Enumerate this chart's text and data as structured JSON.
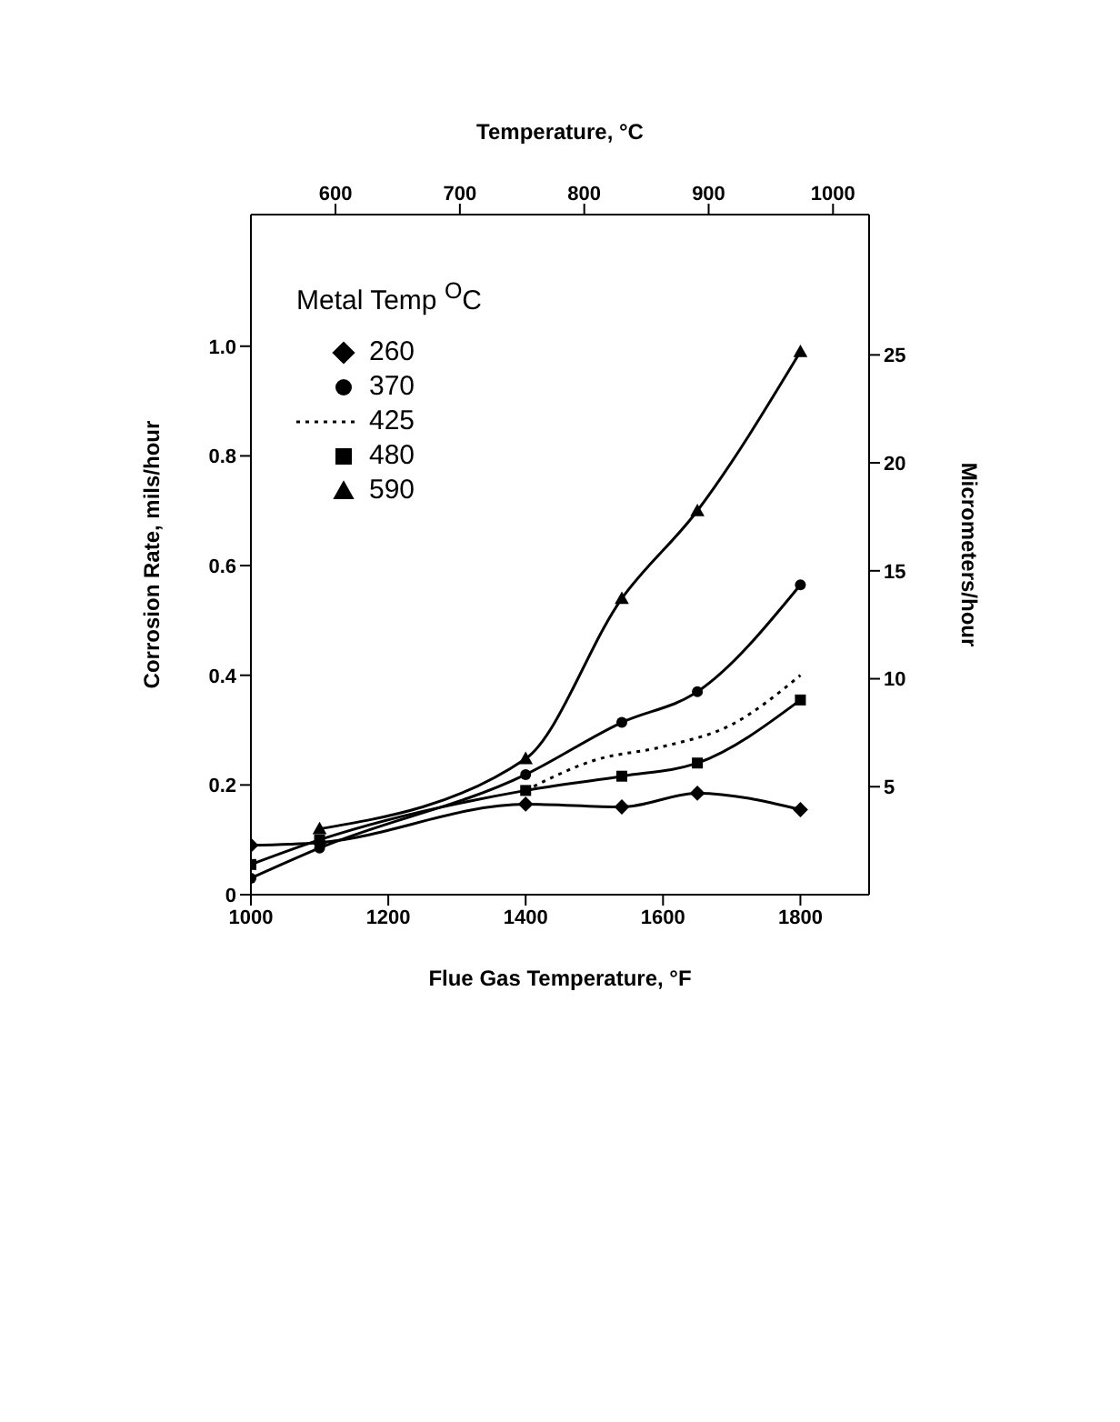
{
  "chart_data": {
    "type": "line",
    "xlabel": "Flue Gas Temperature, °F",
    "ylabel": "Corrosion Rate, mils/hour",
    "y2label": "Micrometers/hour",
    "x2label": "Temperature, °C",
    "legend_title": "Metal Temp $^{O}$C",
    "legend": "top left",
    "grid": false,
    "xlim": [
      1000,
      1900
    ],
    "xticks": [
      1000,
      1200,
      1400,
      1600,
      1800
    ],
    "x2lim": [
      532,
      1029
    ],
    "x2ticks": [
      600,
      700,
      800,
      900,
      1000
    ],
    "ylim": [
      0,
      1.24
    ],
    "yticks": [
      0,
      {
        "value": 0.2,
        "label": "0.2"
      },
      {
        "value": 0.4,
        "label": "0.4"
      },
      {
        "value": 0.6,
        "label": "0.6"
      },
      {
        "value": 0.8,
        "label": "0.8"
      },
      {
        "value": 1,
        "label": "1.0"
      }
    ],
    "y2lim": [
      0,
      31.5
    ],
    "y2ticks": [
      5,
      10,
      15,
      20,
      25
    ],
    "series": [
      {
        "name": "260",
        "color": "#000000",
        "marker": "diamond",
        "line_style": "solid",
        "x": [
          1000,
          1100,
          1400,
          1540,
          1650,
          1800
        ],
        "values": [
          0.09,
          0.095,
          0.165,
          0.16,
          0.185,
          0.155
        ]
      },
      {
        "name": "370",
        "color": "#000000",
        "marker": "circle",
        "line_style": "solid",
        "x": [
          1000,
          1100,
          1400,
          1540,
          1650,
          1800
        ],
        "values": [
          0.03,
          0.085,
          0.219,
          0.314,
          0.37,
          0.565
        ]
      },
      {
        "name": "425",
        "color": "#000000",
        "marker": "none",
        "line_style": "dotted",
        "x": [
          1400,
          1500,
          1600,
          1700,
          1800
        ],
        "values": [
          0.19,
          0.245,
          0.27,
          0.31,
          0.4
        ]
      },
      {
        "name": "480",
        "color": "#000000",
        "marker": "square",
        "line_style": "solid",
        "x": [
          1000,
          1100,
          1400,
          1540,
          1650,
          1800
        ],
        "values": [
          0.055,
          0.1,
          0.19,
          0.216,
          0.24,
          0.355
        ]
      },
      {
        "name": "590",
        "color": "#000000",
        "marker": "triangle",
        "line_style": "solid",
        "x": [
          1100,
          1400,
          1540,
          1650,
          1800
        ],
        "values": [
          0.12,
          0.248,
          0.54,
          0.7,
          0.99
        ]
      }
    ]
  }
}
